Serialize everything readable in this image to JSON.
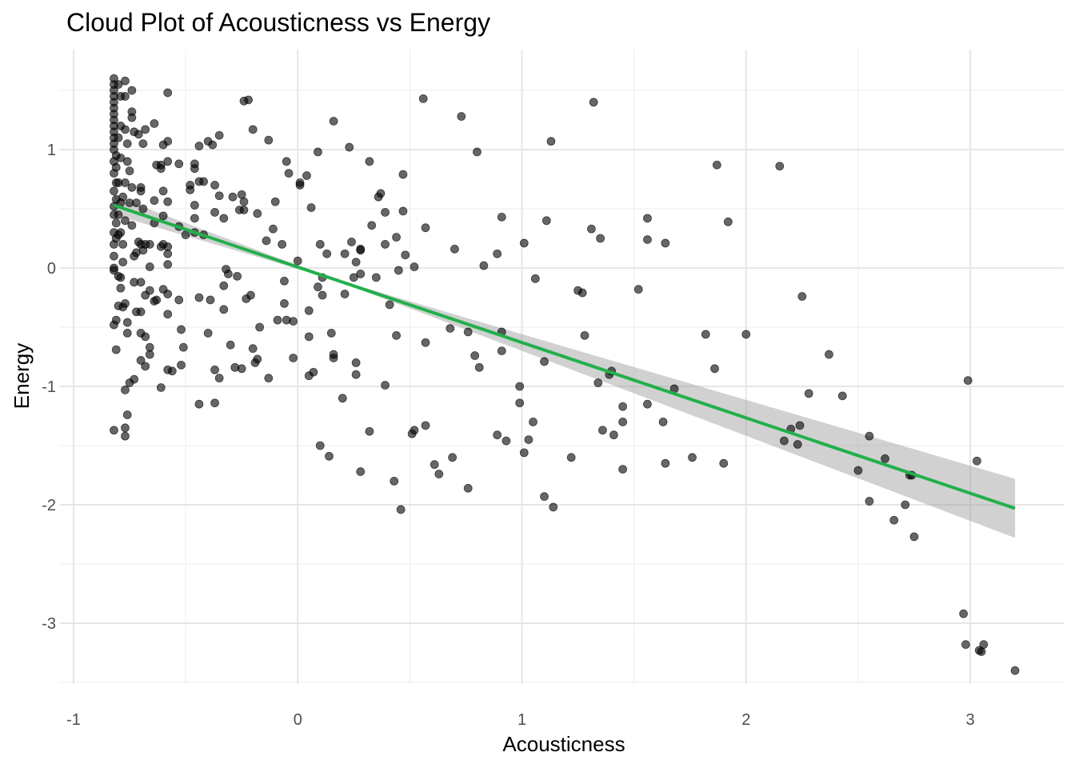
{
  "chart_data": {
    "type": "scatter",
    "title": "Cloud Plot of Acousticness vs Energy",
    "xlabel": "Acousticness",
    "ylabel": "Energy",
    "xlim": [
      -1.05,
      3.4
    ],
    "ylim": [
      -3.5,
      1.85
    ],
    "x_ticks": [
      -1,
      0,
      1,
      2,
      3
    ],
    "x_tick_labels": [
      "-1",
      "0",
      "1",
      "2",
      "3"
    ],
    "y_ticks": [
      -3,
      -2,
      -1,
      0,
      1
    ],
    "y_tick_labels": [
      "-3",
      "-2",
      "-1",
      "0",
      "1"
    ],
    "grid": true,
    "legend": "none",
    "colors": {
      "points": "#000000",
      "fit_line": "#22b04b",
      "confidence_band": "#999999",
      "grid": "#e6e6e6"
    },
    "trend": {
      "method": "linear",
      "x": [
        -0.82,
        3.2
      ],
      "y": [
        0.53,
        -2.03
      ],
      "ci_lower": [
        0.45,
        -2.29
      ],
      "ci_upper": [
        0.61,
        -1.77
      ]
    },
    "points": [
      [
        -0.82,
        1.6
      ],
      [
        -0.82,
        1.55
      ],
      [
        -0.82,
        1.5
      ],
      [
        -0.82,
        1.45
      ],
      [
        -0.82,
        1.4
      ],
      [
        -0.82,
        1.35
      ],
      [
        -0.82,
        1.3
      ],
      [
        -0.82,
        1.25
      ],
      [
        -0.82,
        1.2
      ],
      [
        -0.82,
        1.15
      ],
      [
        -0.82,
        1.1
      ],
      [
        -0.82,
        1.05
      ],
      [
        -0.82,
        1.0
      ],
      [
        -0.81,
        0.95
      ],
      [
        -0.82,
        0.9
      ],
      [
        -0.81,
        0.85
      ],
      [
        -0.82,
        0.8
      ],
      [
        -0.81,
        0.72
      ],
      [
        -0.82,
        0.65
      ],
      [
        -0.81,
        0.58
      ],
      [
        -0.82,
        0.52
      ],
      [
        -0.82,
        0.45
      ],
      [
        -0.81,
        0.38
      ],
      [
        -0.82,
        0.3
      ],
      [
        -0.81,
        0.25
      ],
      [
        -0.82,
        0.2
      ],
      [
        -0.82,
        0.1
      ],
      [
        -0.82,
        0.0
      ],
      [
        -0.82,
        -0.02
      ],
      [
        -0.81,
        -0.44
      ],
      [
        -0.82,
        -0.48
      ],
      [
        -0.81,
        -0.69
      ],
      [
        -0.82,
        -1.37
      ],
      [
        -0.8,
        1.55
      ],
      [
        -0.79,
        1.45
      ],
      [
        -0.79,
        1.2
      ],
      [
        -0.8,
        1.1
      ],
      [
        -0.79,
        0.93
      ],
      [
        -0.8,
        0.72
      ],
      [
        -0.78,
        0.6
      ],
      [
        -0.79,
        0.55
      ],
      [
        -0.8,
        0.45
      ],
      [
        -0.79,
        0.3
      ],
      [
        -0.8,
        0.28
      ],
      [
        -0.78,
        0.2
      ],
      [
        -0.8,
        -0.07
      ],
      [
        -0.79,
        -0.17
      ],
      [
        -0.8,
        -0.32
      ],
      [
        -0.78,
        -0.33
      ],
      [
        -0.79,
        -0.08
      ],
      [
        -0.77,
        1.58
      ],
      [
        -0.77,
        1.45
      ],
      [
        -0.77,
        1.17
      ],
      [
        -0.76,
        1.05
      ],
      [
        -0.76,
        0.9
      ],
      [
        -0.77,
        0.72
      ],
      [
        -0.75,
        0.55
      ],
      [
        -0.77,
        0.4
      ],
      [
        -0.78,
        0.05
      ],
      [
        -0.77,
        -0.3
      ],
      [
        -0.77,
        -1.03
      ],
      [
        -0.76,
        -0.46
      ],
      [
        -0.76,
        -0.55
      ],
      [
        -0.76,
        -1.24
      ],
      [
        -0.77,
        -1.35
      ],
      [
        -0.77,
        -1.42
      ],
      [
        -0.74,
        1.5
      ],
      [
        -0.74,
        1.32
      ],
      [
        -0.74,
        1.27
      ],
      [
        -0.73,
        1.15
      ],
      [
        -0.75,
        0.82
      ],
      [
        -0.74,
        0.68
      ],
      [
        -0.72,
        0.55
      ],
      [
        -0.74,
        0.36
      ],
      [
        -0.73,
        0.1
      ],
      [
        -0.72,
        0.13
      ],
      [
        -0.73,
        -0.12
      ],
      [
        -0.72,
        -0.37
      ],
      [
        -0.73,
        -0.94
      ],
      [
        -0.75,
        -0.97
      ],
      [
        -0.71,
        1.13
      ],
      [
        -0.7,
        0.68
      ],
      [
        -0.7,
        0.65
      ],
      [
        -0.69,
        0.5
      ],
      [
        -0.71,
        0.22
      ],
      [
        -0.7,
        0.2
      ],
      [
        -0.69,
        0.15
      ],
      [
        -0.7,
        -0.12
      ],
      [
        -0.7,
        -0.37
      ],
      [
        -0.7,
        -0.55
      ],
      [
        -0.7,
        -0.78
      ],
      [
        -0.68,
        1.17
      ],
      [
        -0.69,
        1.05
      ],
      [
        -0.68,
        0.2
      ],
      [
        -0.68,
        -0.23
      ],
      [
        -0.68,
        -0.58
      ],
      [
        -0.68,
        -0.83
      ],
      [
        -0.66,
        0.2
      ],
      [
        -0.66,
        0.01
      ],
      [
        -0.66,
        -0.19
      ],
      [
        -0.66,
        -0.67
      ],
      [
        -0.66,
        -0.73
      ],
      [
        -0.64,
        1.22
      ],
      [
        -0.63,
        0.87
      ],
      [
        -0.64,
        0.57
      ],
      [
        -0.64,
        0.38
      ],
      [
        -0.63,
        -0.27
      ],
      [
        -0.64,
        -0.28
      ],
      [
        -0.6,
        1.04
      ],
      [
        -0.61,
        0.87
      ],
      [
        -0.61,
        0.84
      ],
      [
        -0.6,
        0.65
      ],
      [
        -0.6,
        0.44
      ],
      [
        -0.6,
        0.2
      ],
      [
        -0.61,
        0.18
      ],
      [
        -0.6,
        -0.18
      ],
      [
        -0.61,
        -1.01
      ],
      [
        -0.58,
        1.48
      ],
      [
        -0.58,
        1.07
      ],
      [
        -0.58,
        0.9
      ],
      [
        -0.58,
        0.56
      ],
      [
        -0.58,
        0.18
      ],
      [
        -0.58,
        0.12
      ],
      [
        -0.58,
        0.03
      ],
      [
        -0.58,
        -0.22
      ],
      [
        -0.58,
        -0.39
      ],
      [
        -0.58,
        -0.86
      ],
      [
        -0.56,
        -0.87
      ],
      [
        -0.53,
        0.88
      ],
      [
        -0.53,
        0.35
      ],
      [
        -0.53,
        -0.27
      ],
      [
        -0.52,
        -0.52
      ],
      [
        -0.51,
        -0.67
      ],
      [
        -0.52,
        -0.82
      ],
      [
        -0.5,
        0.28
      ],
      [
        -0.48,
        0.66
      ],
      [
        -0.48,
        0.7
      ],
      [
        -0.46,
        0.88
      ],
      [
        -0.46,
        0.84
      ],
      [
        -0.46,
        0.53
      ],
      [
        -0.46,
        0.42
      ],
      [
        -0.46,
        0.3
      ],
      [
        -0.44,
        1.03
      ],
      [
        -0.44,
        0.73
      ],
      [
        -0.44,
        -0.25
      ],
      [
        -0.44,
        -1.15
      ],
      [
        -0.42,
        0.28
      ],
      [
        -0.42,
        0.73
      ],
      [
        -0.4,
        1.07
      ],
      [
        -0.4,
        -0.55
      ],
      [
        -0.39,
        -0.27
      ],
      [
        -0.38,
        1.04
      ],
      [
        -0.37,
        0.7
      ],
      [
        -0.37,
        0.47
      ],
      [
        -0.37,
        -0.86
      ],
      [
        -0.37,
        -1.14
      ],
      [
        -0.35,
        1.12
      ],
      [
        -0.35,
        0.61
      ],
      [
        -0.35,
        -0.93
      ],
      [
        -0.33,
        0.42
      ],
      [
        -0.33,
        -0.15
      ],
      [
        -0.33,
        -0.35
      ],
      [
        -0.32,
        -0.01
      ],
      [
        -0.31,
        -0.05
      ],
      [
        -0.3,
        -0.65
      ],
      [
        -0.29,
        0.6
      ],
      [
        -0.28,
        -0.84
      ],
      [
        -0.27,
        -0.07
      ],
      [
        -0.26,
        0.49
      ],
      [
        -0.25,
        0.62
      ],
      [
        -0.25,
        -0.85
      ],
      [
        -0.24,
        1.41
      ],
      [
        -0.24,
        0.56
      ],
      [
        -0.24,
        0.49
      ],
      [
        -0.23,
        -0.26
      ],
      [
        -0.22,
        1.42
      ],
      [
        -0.21,
        -0.23
      ],
      [
        -0.2,
        1.17
      ],
      [
        -0.2,
        -0.68
      ],
      [
        -0.19,
        -0.8
      ],
      [
        -0.18,
        -0.77
      ],
      [
        -0.18,
        0.46
      ],
      [
        -0.17,
        -0.5
      ],
      [
        -0.14,
        0.23
      ],
      [
        -0.13,
        1.08
      ],
      [
        -0.13,
        -0.93
      ],
      [
        -0.11,
        0.33
      ],
      [
        -0.1,
        0.56
      ],
      [
        -0.09,
        -0.44
      ],
      [
        -0.07,
        0.2
      ],
      [
        -0.06,
        -0.11
      ],
      [
        -0.06,
        -0.3
      ],
      [
        -0.05,
        0.9
      ],
      [
        -0.05,
        -0.44
      ],
      [
        -0.04,
        0.8
      ],
      [
        -0.02,
        -0.45
      ],
      [
        -0.02,
        -0.76
      ],
      [
        0.0,
        0.06
      ],
      [
        0.01,
        0.7
      ],
      [
        0.01,
        0.72
      ],
      [
        0.04,
        0.78
      ],
      [
        0.05,
        -0.36
      ],
      [
        0.05,
        -0.58
      ],
      [
        0.05,
        -0.91
      ],
      [
        0.06,
        0.51
      ],
      [
        0.07,
        -0.88
      ],
      [
        0.09,
        -0.16
      ],
      [
        0.09,
        0.98
      ],
      [
        0.1,
        0.2
      ],
      [
        0.1,
        -1.5
      ],
      [
        0.11,
        -0.08
      ],
      [
        0.11,
        -0.23
      ],
      [
        0.13,
        0.12
      ],
      [
        0.14,
        -1.59
      ],
      [
        0.15,
        -0.55
      ],
      [
        0.16,
        1.24
      ],
      [
        0.16,
        -0.73
      ],
      [
        0.16,
        -0.76
      ],
      [
        0.2,
        -1.1
      ],
      [
        0.21,
        0.12
      ],
      [
        0.21,
        -0.22
      ],
      [
        0.23,
        1.02
      ],
      [
        0.24,
        0.22
      ],
      [
        0.25,
        -0.08
      ],
      [
        0.26,
        0.05
      ],
      [
        0.26,
        -0.8
      ],
      [
        0.26,
        -0.9
      ],
      [
        0.28,
        0.15
      ],
      [
        0.28,
        0.16
      ],
      [
        0.28,
        -0.05
      ],
      [
        0.28,
        -1.72
      ],
      [
        0.32,
        0.9
      ],
      [
        0.32,
        -1.38
      ],
      [
        0.33,
        0.36
      ],
      [
        0.35,
        -0.08
      ],
      [
        0.36,
        0.6
      ],
      [
        0.37,
        0.63
      ],
      [
        0.39,
        0.47
      ],
      [
        0.39,
        0.2
      ],
      [
        0.39,
        -0.99
      ],
      [
        0.41,
        -0.31
      ],
      [
        0.43,
        -1.8
      ],
      [
        0.44,
        0.26
      ],
      [
        0.44,
        -0.57
      ],
      [
        0.45,
        -0.02
      ],
      [
        0.46,
        -2.04
      ],
      [
        0.47,
        0.79
      ],
      [
        0.47,
        0.48
      ],
      [
        0.48,
        0.11
      ],
      [
        0.51,
        -1.4
      ],
      [
        0.52,
        -1.37
      ],
      [
        0.52,
        0.01
      ],
      [
        0.56,
        1.43
      ],
      [
        0.57,
        0.34
      ],
      [
        0.57,
        -0.63
      ],
      [
        0.57,
        -1.33
      ],
      [
        0.61,
        -1.66
      ],
      [
        0.63,
        -1.74
      ],
      [
        0.68,
        -0.51
      ],
      [
        0.69,
        -1.6
      ],
      [
        0.7,
        0.16
      ],
      [
        0.73,
        1.28
      ],
      [
        0.76,
        -0.54
      ],
      [
        0.76,
        -1.86
      ],
      [
        0.79,
        -0.74
      ],
      [
        0.8,
        0.98
      ],
      [
        0.81,
        -0.84
      ],
      [
        0.83,
        0.02
      ],
      [
        0.89,
        0.12
      ],
      [
        0.89,
        -1.41
      ],
      [
        0.91,
        0.43
      ],
      [
        0.91,
        -0.54
      ],
      [
        0.91,
        -0.7
      ],
      [
        0.93,
        -1.46
      ],
      [
        0.99,
        -1.0
      ],
      [
        0.99,
        -1.14
      ],
      [
        1.01,
        0.21
      ],
      [
        1.01,
        -1.56
      ],
      [
        1.03,
        -1.45
      ],
      [
        1.05,
        -1.3
      ],
      [
        1.06,
        -0.09
      ],
      [
        1.1,
        -1.93
      ],
      [
        1.1,
        -0.79
      ],
      [
        1.11,
        0.4
      ],
      [
        1.13,
        1.07
      ],
      [
        1.14,
        -2.02
      ],
      [
        1.22,
        -1.6
      ],
      [
        1.25,
        -0.19
      ],
      [
        1.27,
        -0.21
      ],
      [
        1.28,
        -0.57
      ],
      [
        1.31,
        0.33
      ],
      [
        1.32,
        1.4
      ],
      [
        1.34,
        -0.97
      ],
      [
        1.35,
        0.25
      ],
      [
        1.36,
        -1.37
      ],
      [
        1.39,
        -0.9
      ],
      [
        1.4,
        -0.87
      ],
      [
        1.41,
        -1.41
      ],
      [
        1.45,
        -1.17
      ],
      [
        1.45,
        -1.3
      ],
      [
        1.45,
        -1.7
      ],
      [
        1.52,
        -0.18
      ],
      [
        1.56,
        0.42
      ],
      [
        1.56,
        0.24
      ],
      [
        1.56,
        -1.15
      ],
      [
        1.63,
        -1.3
      ],
      [
        1.64,
        0.21
      ],
      [
        1.64,
        -1.65
      ],
      [
        1.68,
        -1.02
      ],
      [
        1.76,
        -1.6
      ],
      [
        1.82,
        -0.56
      ],
      [
        1.86,
        -0.85
      ],
      [
        1.87,
        0.87
      ],
      [
        1.9,
        -1.65
      ],
      [
        1.92,
        0.39
      ],
      [
        2.0,
        -0.56
      ],
      [
        2.15,
        0.86
      ],
      [
        2.17,
        -1.46
      ],
      [
        2.2,
        -1.36
      ],
      [
        2.23,
        -1.49
      ],
      [
        2.24,
        -1.33
      ],
      [
        2.25,
        -0.24
      ],
      [
        2.28,
        -1.06
      ],
      [
        2.37,
        -0.73
      ],
      [
        2.43,
        -1.08
      ],
      [
        2.5,
        -1.71
      ],
      [
        2.55,
        -1.42
      ],
      [
        2.55,
        -1.97
      ],
      [
        2.62,
        -1.61
      ],
      [
        2.66,
        -2.13
      ],
      [
        2.71,
        -2.0
      ],
      [
        2.73,
        -1.75
      ],
      [
        2.74,
        -1.75
      ],
      [
        2.75,
        -2.27
      ],
      [
        2.97,
        -2.92
      ],
      [
        2.98,
        -3.18
      ],
      [
        2.99,
        -0.95
      ],
      [
        3.03,
        -1.63
      ],
      [
        3.04,
        -3.23
      ],
      [
        3.05,
        -3.24
      ],
      [
        3.06,
        -3.18
      ],
      [
        3.2,
        -3.4
      ]
    ]
  }
}
